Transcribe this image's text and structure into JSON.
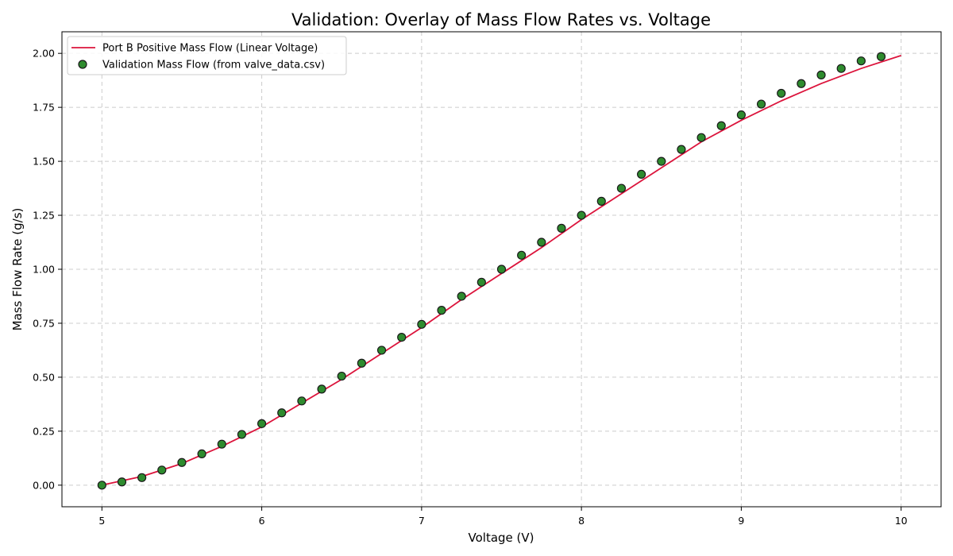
{
  "chart_data": {
    "type": "line",
    "title": "Validation: Overlay of Mass Flow Rates vs. Voltage",
    "xlabel": "Voltage (V)",
    "ylabel": "Mass Flow Rate (g/s)",
    "xlim": [
      4.75,
      10.25
    ],
    "ylim": [
      -0.1,
      2.1
    ],
    "xticks": [
      5,
      6,
      7,
      8,
      9,
      10
    ],
    "xtick_labels": [
      "5",
      "6",
      "7",
      "8",
      "9",
      "10"
    ],
    "yticks": [
      0.0,
      0.25,
      0.5,
      0.75,
      1.0,
      1.25,
      1.5,
      1.75,
      2.0
    ],
    "ytick_labels": [
      "0.00",
      "0.25",
      "0.50",
      "0.75",
      "1.00",
      "1.25",
      "1.50",
      "1.75",
      "2.00"
    ],
    "grid": true,
    "legend_position": "top-left",
    "series": [
      {
        "name": "Port B Positive Mass Flow (Linear Voltage)",
        "kind": "line",
        "color": "#dc143c",
        "x": [
          5.0,
          5.25,
          5.5,
          5.75,
          6.0,
          6.25,
          6.5,
          6.75,
          7.0,
          7.25,
          7.5,
          7.75,
          8.0,
          8.25,
          8.5,
          8.75,
          9.0,
          9.25,
          9.5,
          9.75,
          10.0
        ],
        "y": [
          0.0,
          0.04,
          0.1,
          0.18,
          0.27,
          0.38,
          0.49,
          0.61,
          0.73,
          0.86,
          0.98,
          1.1,
          1.23,
          1.35,
          1.47,
          1.59,
          1.69,
          1.78,
          1.86,
          1.93,
          1.99
        ]
      },
      {
        "name": "Validation Mass Flow (from valve_data.csv)",
        "kind": "scatter",
        "color": "#2e8b2e",
        "edge_color": "#1a1a1a",
        "x": [
          5.0,
          5.125,
          5.25,
          5.375,
          5.5,
          5.625,
          5.75,
          5.875,
          6.0,
          6.125,
          6.25,
          6.375,
          6.5,
          6.625,
          6.75,
          6.875,
          7.0,
          7.125,
          7.25,
          7.375,
          7.5,
          7.625,
          7.75,
          7.875,
          8.0,
          8.125,
          8.25,
          8.375,
          8.5,
          8.625,
          8.75,
          8.875,
          9.0,
          9.125,
          9.25,
          9.375,
          9.5,
          9.625,
          9.75,
          9.875
        ],
        "y": [
          0.0,
          0.015,
          0.035,
          0.07,
          0.105,
          0.145,
          0.19,
          0.235,
          0.285,
          0.335,
          0.39,
          0.445,
          0.505,
          0.565,
          0.625,
          0.685,
          0.745,
          0.81,
          0.875,
          0.94,
          1.0,
          1.065,
          1.125,
          1.19,
          1.25,
          1.315,
          1.375,
          1.44,
          1.5,
          1.555,
          1.61,
          1.665,
          1.715,
          1.765,
          1.815,
          1.86,
          1.9,
          1.93,
          1.965,
          1.985
        ]
      }
    ]
  }
}
